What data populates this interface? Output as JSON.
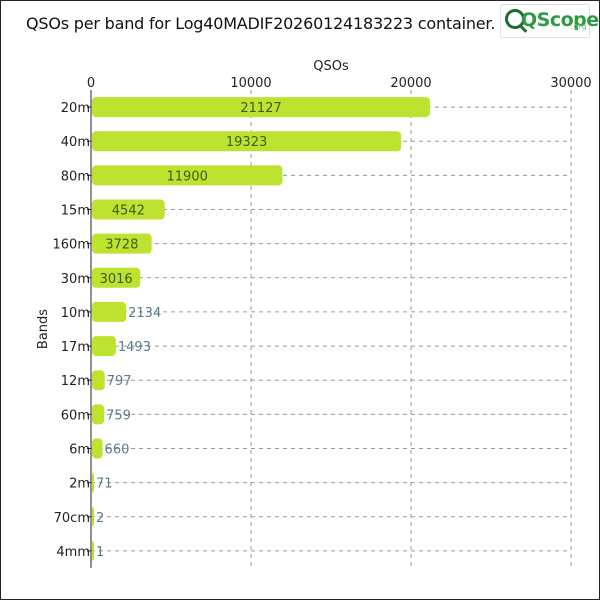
{
  "title": "QSOs per band for Log40MADIF20260124183223 container.",
  "logo": {
    "word": "QScope",
    "suffix": ".org",
    "icon": "magnifier-icon"
  },
  "colors": {
    "bar": "#bde22f",
    "inside_label": "#3d5c15",
    "outside_label": "#5a7d8a",
    "grid": "#9a9a9a",
    "text": "#222222"
  },
  "chart_data": {
    "type": "bar",
    "orientation": "horizontal",
    "title": "QSOs per band for Log40MADIF20260124183223 container.",
    "xlabel": "QSOs",
    "ylabel": "Bands",
    "xlim": [
      0,
      30000
    ],
    "xticks": [
      0,
      10000,
      20000,
      30000
    ],
    "x_axis_position": "top",
    "grid": true,
    "categories": [
      "20m",
      "40m",
      "80m",
      "15m",
      "160m",
      "30m",
      "10m",
      "17m",
      "12m",
      "60m",
      "6m",
      "2m",
      "70cm",
      "4mm"
    ],
    "values": [
      21127,
      19323,
      11900,
      4542,
      3728,
      3016,
      2134,
      1493,
      797,
      759,
      660,
      71,
      2,
      1
    ]
  }
}
